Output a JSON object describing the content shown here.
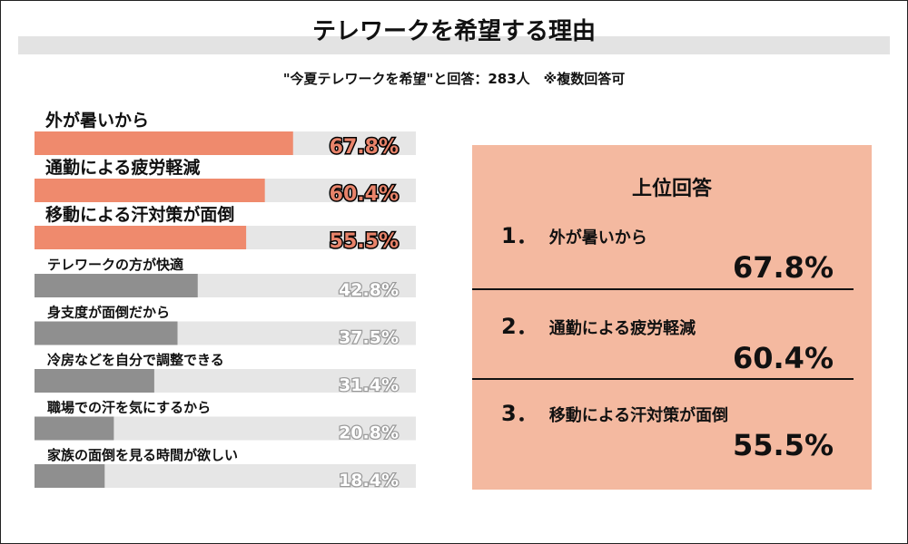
{
  "header": {
    "title": "テレワークを希望する理由",
    "subtitle": "\"今夏テレワークを希望\"と回答：283人　※複数回答可"
  },
  "chart_data": {
    "type": "bar",
    "orientation": "horizontal",
    "categories": [
      "外が暑いから",
      "通勤による疲労軽減",
      "移動による汗対策が面倒",
      "テレワークの方が快適",
      "身支度が面倒だから",
      "冷房などを自分で調整できる",
      "職場での汗を気にするから",
      "家族の面倒を見る時間が欲しい"
    ],
    "values": [
      67.8,
      60.4,
      55.5,
      42.8,
      37.5,
      31.4,
      20.8,
      18.4
    ],
    "value_labels": [
      "67.8%",
      "60.4%",
      "55.5%",
      "42.8%",
      "37.5%",
      "31.4%",
      "20.8%",
      "18.4%"
    ],
    "xlim": [
      0,
      100
    ],
    "highlight_count": 3,
    "colors": {
      "highlight": "#ef8a6d",
      "normal": "#8f8f8f",
      "track": "#e6e6e6"
    }
  },
  "panel": {
    "title": "上位回答",
    "items": [
      {
        "rank": "1．",
        "label": "外が暑いから",
        "value": "67.8%"
      },
      {
        "rank": "2．",
        "label": "通勤による疲労軽減",
        "value": "60.4%"
      },
      {
        "rank": "3．",
        "label": "移動による汗対策が面倒",
        "value": "55.5%"
      }
    ]
  }
}
